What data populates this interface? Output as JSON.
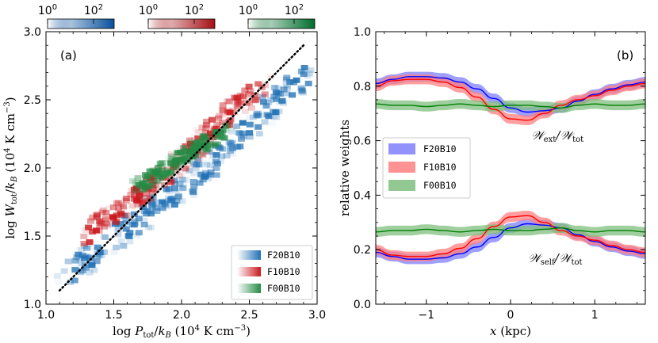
{
  "chart_data": [
    {
      "type": "heatmap",
      "panel_label": "(a)",
      "xlabel": "log P_tot/k_B (10^4 K cm^-3)",
      "ylabel": "log W_tot/k_B (10^4 K cm^-3)",
      "xlim": [
        1.0,
        3.0
      ],
      "ylim": [
        1.0,
        3.0
      ],
      "xticks": [
        "1.0",
        "1.5",
        "2.0",
        "2.5",
        "3.0"
      ],
      "yticks": [
        "1.0",
        "1.5",
        "2.0",
        "2.5",
        "3.0"
      ],
      "colorbars": [
        {
          "name": "F20B10",
          "color": "#08519c",
          "ticks": [
            "10^0",
            "10^2"
          ]
        },
        {
          "name": "F10B10",
          "color": "#a50f15",
          "ticks": [
            "10^0",
            "10^2"
          ]
        },
        {
          "name": "F00B10",
          "color": "#006d2c",
          "ticks": [
            "10^0",
            "10^2"
          ]
        }
      ],
      "series": [
        {
          "name": "F20B10",
          "color": "#2171b5",
          "x": [
            1.15,
            1.4,
            1.8,
            2.2,
            2.6,
            2.9
          ],
          "y": [
            1.25,
            1.45,
            1.75,
            2.05,
            2.45,
            2.7
          ]
        },
        {
          "name": "F10B10",
          "color": "#cb181d",
          "x": [
            1.3,
            1.55,
            1.8,
            2.05,
            2.3,
            2.55
          ],
          "y": [
            1.55,
            1.75,
            1.9,
            2.15,
            2.4,
            2.6
          ]
        },
        {
          "name": "F00B10",
          "color": "#238b45",
          "x": [
            1.65,
            1.8,
            1.95,
            2.1,
            2.3
          ],
          "y": [
            1.88,
            1.98,
            2.08,
            2.18,
            2.28
          ]
        }
      ],
      "reference_line": {
        "style": "dotted",
        "x": [
          1.1,
          2.9
        ],
        "y": [
          1.1,
          2.9
        ]
      },
      "legend": [
        "F20B10",
        "F10B10",
        "F00B10"
      ],
      "legend_position": "bottom-right"
    },
    {
      "type": "line",
      "panel_label": "(b)",
      "xlabel": "x (kpc)",
      "ylabel": "relative weights",
      "xlim": [
        -1.6,
        1.6
      ],
      "ylim": [
        0.0,
        1.0
      ],
      "xticks": [
        "−1",
        "0",
        "1"
      ],
      "xtick_values": [
        -1,
        0,
        1
      ],
      "yticks": [
        "0.0",
        "0.2",
        "0.4",
        "0.6",
        "0.8",
        "1.0"
      ],
      "x": [
        -1.6,
        -1.4,
        -1.2,
        -1.0,
        -0.8,
        -0.6,
        -0.4,
        -0.2,
        0.0,
        0.2,
        0.4,
        0.6,
        0.8,
        1.0,
        1.2,
        1.4,
        1.6
      ],
      "series": [
        {
          "name": "F20B10",
          "group": "ext",
          "color": "#0000ff",
          "band": "#7f7fff",
          "values": [
            0.81,
            0.825,
            0.835,
            0.835,
            0.83,
            0.815,
            0.79,
            0.755,
            0.72,
            0.705,
            0.71,
            0.72,
            0.745,
            0.77,
            0.79,
            0.805,
            0.815
          ]
        },
        {
          "name": "F10B10",
          "group": "ext",
          "color": "#ff0000",
          "band": "#ff7f7f",
          "values": [
            0.8,
            0.82,
            0.825,
            0.825,
            0.815,
            0.795,
            0.76,
            0.715,
            0.68,
            0.675,
            0.7,
            0.73,
            0.75,
            0.765,
            0.785,
            0.8,
            0.81
          ]
        },
        {
          "name": "F00B10",
          "group": "ext",
          "color": "#008000",
          "band": "#7fbf7f",
          "values": [
            0.735,
            0.73,
            0.73,
            0.725,
            0.73,
            0.735,
            0.73,
            0.725,
            0.73,
            0.73,
            0.725,
            0.72,
            0.73,
            0.735,
            0.73,
            0.73,
            0.735
          ]
        },
        {
          "name": "F20B10",
          "group": "self",
          "color": "#0000ff",
          "band": "#7f7fff",
          "values": [
            0.19,
            0.175,
            0.165,
            0.165,
            0.17,
            0.185,
            0.21,
            0.245,
            0.28,
            0.295,
            0.29,
            0.28,
            0.255,
            0.23,
            0.21,
            0.195,
            0.185
          ]
        },
        {
          "name": "F10B10",
          "group": "self",
          "color": "#ff0000",
          "band": "#ff7f7f",
          "values": [
            0.2,
            0.18,
            0.175,
            0.175,
            0.185,
            0.205,
            0.24,
            0.285,
            0.32,
            0.325,
            0.3,
            0.27,
            0.25,
            0.235,
            0.215,
            0.2,
            0.19
          ]
        },
        {
          "name": "F00B10",
          "group": "self",
          "color": "#008000",
          "band": "#7fbf7f",
          "values": [
            0.265,
            0.27,
            0.27,
            0.275,
            0.27,
            0.265,
            0.27,
            0.275,
            0.27,
            0.27,
            0.275,
            0.28,
            0.27,
            0.265,
            0.27,
            0.27,
            0.265
          ]
        }
      ],
      "annotations": [
        {
          "text": "W_ext/W_tot"
        },
        {
          "text": "W_self/W_tot"
        }
      ],
      "legend": [
        "F20B10",
        "F10B10",
        "F00B10"
      ],
      "legend_position": "center-left"
    }
  ]
}
